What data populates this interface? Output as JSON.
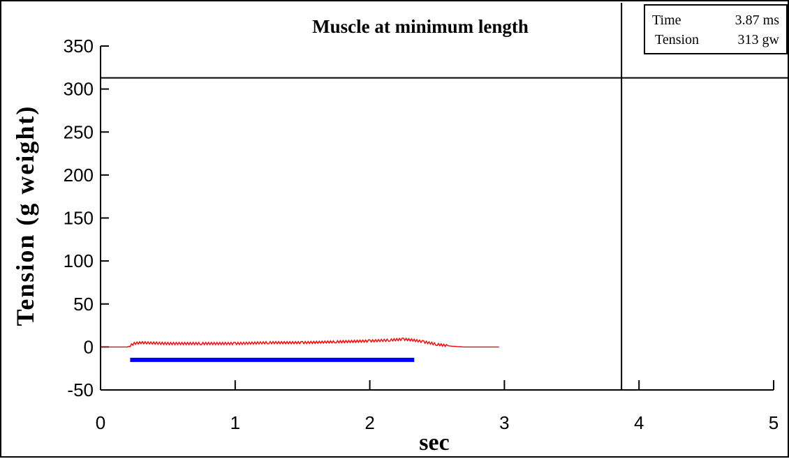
{
  "chart_data": {
    "type": "line",
    "title": "Muscle at minimum length",
    "xlabel": "sec",
    "ylabel": "Tension (g weight)",
    "xlim": [
      0,
      5
    ],
    "ylim": [
      -50,
      350
    ],
    "xticks": [
      0,
      1,
      2,
      3,
      4,
      5
    ],
    "yticks": [
      -50,
      0,
      50,
      100,
      150,
      200,
      250,
      300,
      350
    ],
    "grid": false,
    "series": [
      {
        "color": "#ff0000",
        "x": [
          0.0,
          0.2,
          0.25,
          0.3,
          0.5,
          0.75,
          1.0,
          1.25,
          1.5,
          1.75,
          2.0,
          2.15,
          2.25,
          2.32,
          2.4,
          2.5,
          2.6,
          2.7,
          2.8,
          2.96
        ],
        "y": [
          0,
          0,
          4,
          5,
          4,
          4,
          4,
          5,
          5,
          6,
          7,
          8,
          9,
          8,
          6,
          3,
          1,
          0,
          0,
          0
        ],
        "noise": true
      }
    ],
    "stimulus_bar": {
      "color": "#0000ff",
      "x_start": 0.22,
      "x_end": 2.33,
      "y": -15
    },
    "cursor": {
      "x": 3.87,
      "y": 313,
      "color": "#000000"
    }
  },
  "readout": {
    "time_label": "Time",
    "time_value": "3.87 ms",
    "tension_label": "Tension",
    "tension_value": "313 gw"
  }
}
